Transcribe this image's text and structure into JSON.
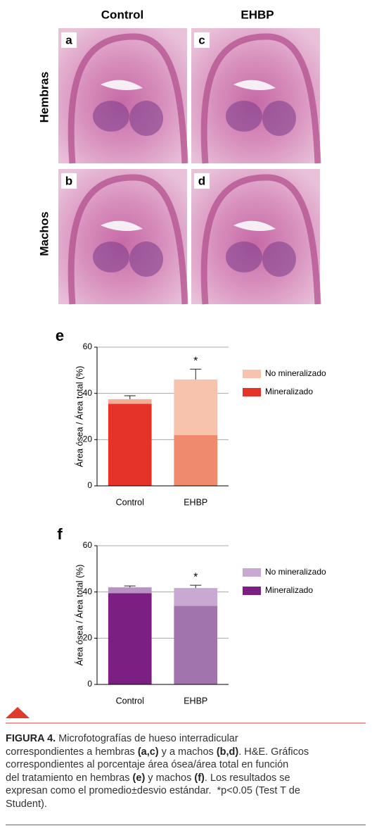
{
  "header": {
    "columns": [
      "Control",
      "EHBP"
    ],
    "rows": [
      "Hembras",
      "Machos"
    ]
  },
  "panels": [
    "a",
    "c",
    "b",
    "d"
  ],
  "chart_data": [
    {
      "type": "stacked-bar",
      "label": "e",
      "ylabel": "Área ósea / Área total (%)",
      "categories": [
        "Control",
        "EHBP"
      ],
      "series": [
        {
          "name": "Mineralizado",
          "color": "#e63329",
          "bar_colors": [
            "#e63329",
            "#ef8a6c"
          ],
          "values": [
            35.5,
            22
          ]
        },
        {
          "name": "No mineralizado",
          "color": "#f7c3ad",
          "bar_colors": [
            "#f4ae97",
            "#f7c3ad"
          ],
          "values": [
            2,
            24
          ],
          "errors": [
            1.5,
            4.5
          ]
        }
      ],
      "significance": [
        null,
        "*"
      ],
      "ylim": [
        0,
        60
      ],
      "yticks": [
        0,
        20,
        40,
        60
      ],
      "grid": true
    },
    {
      "type": "stacked-bar",
      "label": "f",
      "ylabel": "Área ósea / Área total (%)",
      "categories": [
        "Control",
        "EHBP"
      ],
      "series": [
        {
          "name": "Mineralizado",
          "color": "#7b2082",
          "bar_colors": [
            "#7b2082",
            "#a274ae"
          ],
          "values": [
            39.5,
            34
          ]
        },
        {
          "name": "No mineralizado",
          "color": "#c8a9d1",
          "bar_colors": [
            "#b893c2",
            "#c8a9d1"
          ],
          "values": [
            2.5,
            7.7
          ],
          "errors": [
            0.6,
            1.2
          ]
        }
      ],
      "significance": [
        null,
        "*"
      ],
      "ylim": [
        0,
        60
      ],
      "yticks": [
        0,
        20,
        40,
        60
      ],
      "grid": true
    }
  ],
  "caption": {
    "lines": [
      [
        {
          "text": "FIGURA 4.",
          "bold": true
        },
        {
          "text": " Microfotografías de hueso interradicular"
        }
      ],
      [
        {
          "text": "correspondientes a hembras "
        },
        {
          "text": "(a,c)",
          "bold": true
        },
        {
          "text": " y a machos "
        },
        {
          "text": "(b,d)",
          "bold": true
        },
        {
          "text": ". H&E. Gráficos"
        }
      ],
      [
        {
          "text": "correspondientes al porcentaje área ósea/área total en función"
        }
      ],
      [
        {
          "text": "del tratamiento en hembras "
        },
        {
          "text": "(e)",
          "bold": true
        },
        {
          "text": " y machos "
        },
        {
          "text": "(f)",
          "bold": true
        },
        {
          "text": ". Los resultados se"
        }
      ],
      [
        {
          "text": "expresan como el promedio±desvio estándar.  *p<0.05 (Test T de"
        }
      ],
      [
        {
          "text": "Student)."
        }
      ]
    ]
  }
}
